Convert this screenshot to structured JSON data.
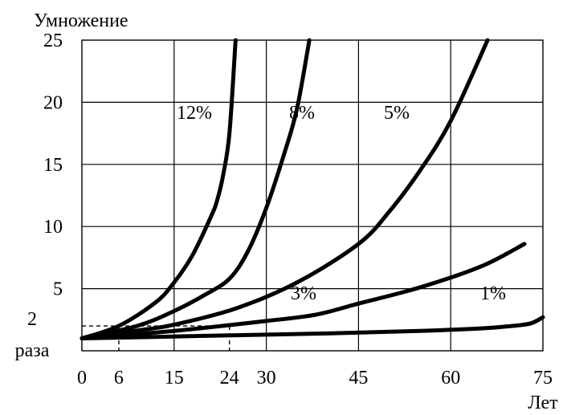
{
  "chart_data": {
    "type": "line",
    "ylabel": "Умножение",
    "xlabel": "Лет",
    "x_ticks": [
      0,
      6,
      15,
      24,
      30,
      45,
      60,
      75
    ],
    "x_tick_labels": [
      "0",
      "6",
      "15",
      "24",
      "30",
      "45",
      "60",
      "75"
    ],
    "y_ticks": [
      5,
      10,
      15,
      20,
      25
    ],
    "y_tick_labels": [
      "5",
      "10",
      "15",
      "20",
      "25"
    ],
    "y_annotation": {
      "number": "2",
      "word": "раза"
    },
    "xlim": [
      0,
      75
    ],
    "ylim": [
      0,
      25
    ],
    "grid": true,
    "series": [
      {
        "name": "12%",
        "x": [
          0,
          6,
          12,
          15,
          18,
          21,
          22,
          23,
          24,
          25
        ],
        "y": [
          1,
          2,
          3.9,
          5.5,
          7.7,
          10.8,
          12.1,
          14.2,
          17.5,
          25
        ]
      },
      {
        "name": "8%",
        "x": [
          0,
          9,
          15,
          20,
          24,
          27,
          30,
          33,
          35,
          37
        ],
        "y": [
          1,
          2,
          3.2,
          4.5,
          5.8,
          8,
          11.5,
          16,
          19.5,
          25
        ]
      },
      {
        "name": "5%",
        "x": [
          0,
          10,
          15,
          25,
          35,
          45,
          50,
          55,
          60,
          66
        ],
        "y": [
          1,
          1.7,
          2.1,
          3.4,
          5.5,
          8.6,
          11.2,
          14.5,
          18.5,
          25
        ]
      },
      {
        "name": "3%",
        "x": [
          0,
          15,
          30,
          38,
          45,
          55,
          65,
          72
        ],
        "y": [
          1,
          1.6,
          2.4,
          2.9,
          3.8,
          5.1,
          6.8,
          8.6
        ]
      },
      {
        "name": "1%",
        "x": [
          0,
          20,
          40,
          55,
          65,
          70,
          73,
          75
        ],
        "y": [
          1,
          1.2,
          1.4,
          1.6,
          1.8,
          2,
          2.2,
          2.7
        ]
      }
    ],
    "doubling_guides": [
      {
        "x": 6,
        "y": 2
      },
      {
        "x": 24,
        "y": 2
      }
    ]
  }
}
